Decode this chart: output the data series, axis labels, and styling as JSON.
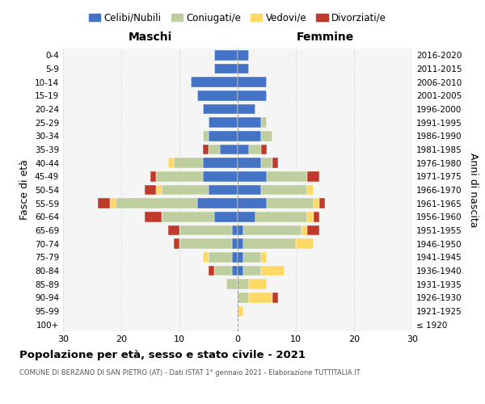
{
  "age_groups": [
    "100+",
    "95-99",
    "90-94",
    "85-89",
    "80-84",
    "75-79",
    "70-74",
    "65-69",
    "60-64",
    "55-59",
    "50-54",
    "45-49",
    "40-44",
    "35-39",
    "30-34",
    "25-29",
    "20-24",
    "15-19",
    "10-14",
    "5-9",
    "0-4"
  ],
  "birth_years": [
    "≤ 1920",
    "1921-1925",
    "1926-1930",
    "1931-1935",
    "1936-1940",
    "1941-1945",
    "1946-1950",
    "1951-1955",
    "1956-1960",
    "1961-1965",
    "1966-1970",
    "1971-1975",
    "1976-1980",
    "1981-1985",
    "1986-1990",
    "1991-1995",
    "1996-2000",
    "2001-2005",
    "2006-2010",
    "2011-2015",
    "2016-2020"
  ],
  "males": {
    "celibi": [
      0,
      0,
      0,
      0,
      1,
      1,
      1,
      1,
      4,
      7,
      5,
      6,
      6,
      3,
      5,
      5,
      6,
      7,
      8,
      4,
      4
    ],
    "coniugati": [
      0,
      0,
      0,
      2,
      3,
      4,
      9,
      9,
      9,
      14,
      8,
      8,
      5,
      2,
      1,
      0,
      0,
      0,
      0,
      0,
      0
    ],
    "vedovi": [
      0,
      0,
      0,
      0,
      0,
      1,
      0,
      0,
      0,
      1,
      1,
      0,
      1,
      0,
      0,
      0,
      0,
      0,
      0,
      0,
      0
    ],
    "divorziati": [
      0,
      0,
      0,
      0,
      1,
      0,
      1,
      2,
      3,
      2,
      2,
      1,
      0,
      1,
      0,
      0,
      0,
      0,
      0,
      0,
      0
    ]
  },
  "females": {
    "nubili": [
      0,
      0,
      0,
      0,
      1,
      1,
      1,
      1,
      3,
      5,
      4,
      5,
      4,
      2,
      4,
      4,
      3,
      5,
      5,
      2,
      2
    ],
    "coniugate": [
      0,
      0,
      2,
      2,
      3,
      3,
      9,
      10,
      9,
      8,
      8,
      7,
      2,
      2,
      2,
      1,
      0,
      0,
      0,
      0,
      0
    ],
    "vedove": [
      0,
      1,
      4,
      3,
      4,
      1,
      3,
      1,
      1,
      1,
      1,
      0,
      0,
      0,
      0,
      0,
      0,
      0,
      0,
      0,
      0
    ],
    "divorziate": [
      0,
      0,
      1,
      0,
      0,
      0,
      0,
      2,
      1,
      1,
      0,
      2,
      1,
      1,
      0,
      0,
      0,
      0,
      0,
      0,
      0
    ]
  },
  "colors": {
    "celibi": "#4472C4",
    "coniugati": "#BFCE9E",
    "vedovi": "#FFD966",
    "divorziati": "#C0392B"
  },
  "xlim": [
    -30,
    30
  ],
  "xticks": [
    -30,
    -20,
    -10,
    0,
    10,
    20,
    30
  ],
  "xticklabels": [
    "30",
    "20",
    "10",
    "0",
    "10",
    "20",
    "30"
  ],
  "title": "Popolazione per età, sesso e stato civile - 2021",
  "subtitle": "COMUNE DI BERZANO DI SAN PIETRO (AT) - Dati ISTAT 1° gennaio 2021 - Elaborazione TUTTITALIA.IT",
  "ylabel_left": "Fasce di età",
  "ylabel_right": "Anni di nascita",
  "label_maschi": "Maschi",
  "label_femmine": "Femmine",
  "legend_labels": [
    "Celibi/Nubili",
    "Coniugati/e",
    "Vedovi/e",
    "Divorziati/e"
  ],
  "bg_color": "#FFFFFF",
  "grid_color": "#CCCCCC",
  "ax_bg_color": "#F5F5F5"
}
